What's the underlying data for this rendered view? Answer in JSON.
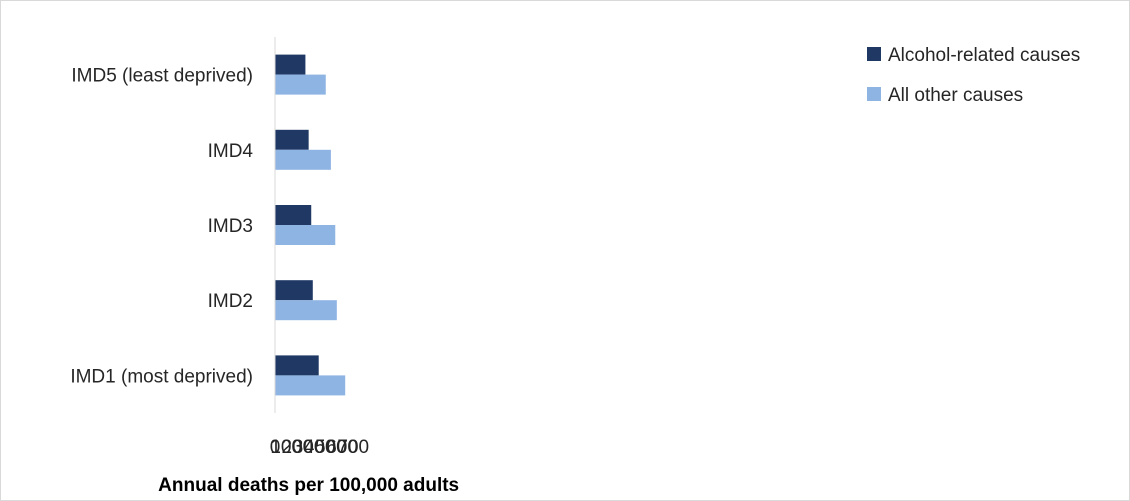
{
  "chart_data": {
    "type": "bar",
    "orientation": "horizontal",
    "title": "",
    "xlabel": "Annual deaths per 100,000 adults",
    "ylabel": "",
    "xlim": [
      0,
      700
    ],
    "xticks": [
      0,
      100,
      200,
      300,
      400,
      500,
      600,
      700
    ],
    "grid": false,
    "legend_position": "top-right",
    "categories": [
      "IMD5 (least deprived)",
      "IMD4",
      "IMD3",
      "IMD2",
      "IMD1 (most deprived)"
    ],
    "series": [
      {
        "name": "Alcohol-related causes",
        "color": "#1f3864",
        "values": [
          272,
          301,
          324,
          338,
          391
        ]
      },
      {
        "name": "All other causes",
        "color": "#8eb4e3",
        "values": [
          454,
          500,
          539,
          553,
          628
        ]
      }
    ]
  }
}
